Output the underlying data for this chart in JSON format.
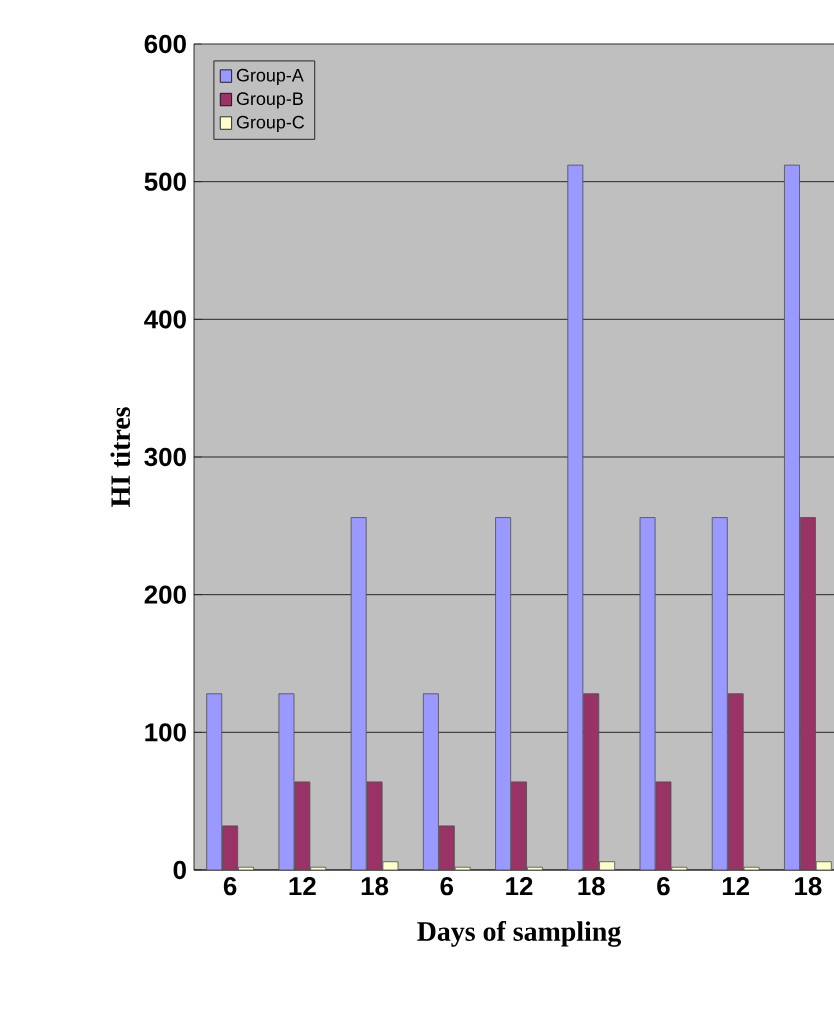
{
  "chart_data": {
    "type": "bar",
    "xlabel": "Days of sampling",
    "ylabel": "HI titres",
    "categories": [
      "6",
      "12",
      "18",
      "6",
      "12",
      "18",
      "6",
      "12",
      "18"
    ],
    "series": [
      {
        "name": "Group-A",
        "color": "#9999ff",
        "values": [
          128,
          128,
          256,
          128,
          256,
          512,
          256,
          256,
          512
        ]
      },
      {
        "name": "Group-B",
        "color": "#993366",
        "values": [
          32,
          64,
          64,
          32,
          64,
          128,
          64,
          128,
          256
        ]
      },
      {
        "name": "Group-C",
        "color": "#ffffcc",
        "values": [
          2,
          2,
          6,
          2,
          2,
          6,
          2,
          2,
          6
        ]
      }
    ],
    "ylim": [
      0,
      600
    ],
    "yticks": [
      0,
      100,
      200,
      300,
      400,
      500,
      600
    ],
    "grid": "y",
    "legend": "top left"
  }
}
